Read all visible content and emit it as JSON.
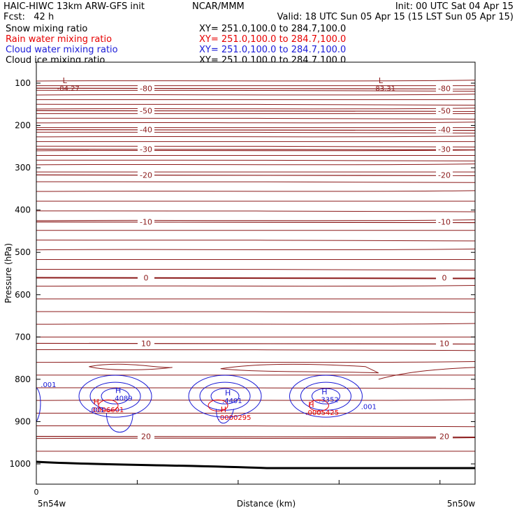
{
  "header": {
    "title": "HAIC-HIWC 13km ARW-GFS init",
    "center": "NCAR/MMM",
    "init": "Init: 00 UTC Sat 04 Apr 15",
    "fcst": "Fcst:   42 h",
    "valid": "Valid: 18 UTC Sun 05 Apr 15 (15 LST Sun 05 Apr 15)"
  },
  "fields": [
    {
      "name": "Snow mixing ratio",
      "xy": "XY= 251.0,100.0 to 284.7,100.0",
      "color": "#000000"
    },
    {
      "name": "Rain water mixing ratio",
      "xy": "XY= 251.0,100.0 to 284.7,100.0",
      "color": "#e60000"
    },
    {
      "name": "Cloud water mixing ratio",
      "xy": "XY= 251.0,100.0 to 284.7,100.0",
      "color": "#1a1ad6"
    },
    {
      "name": "Cloud ice mixing ratio",
      "xy": "XY= 251.0,100.0 to 284.7,100.0",
      "color": "#000000"
    }
  ],
  "chart_data": {
    "type": "line",
    "xlabel": "Distance (km)",
    "ylabel": "Pressure (hPa)",
    "x_tick_labels": [
      "0"
    ],
    "x_end_labels": {
      "left": "5n54w",
      "right": "5n50w"
    },
    "y_ticks": [
      100,
      200,
      300,
      400,
      500,
      600,
      700,
      800,
      900,
      1000
    ],
    "ylim": [
      1050,
      50
    ],
    "temperature_contours": [
      {
        "level": -80,
        "label": "-80",
        "p": 112
      },
      {
        "level": -50,
        "label": "-50",
        "p": 165
      },
      {
        "level": -40,
        "label": "-40",
        "p": 210
      },
      {
        "level": -30,
        "label": "-30",
        "p": 256
      },
      {
        "level": -20,
        "label": "-20",
        "p": 317
      },
      {
        "level": -10,
        "label": "-10",
        "p": 428
      },
      {
        "level": 0,
        "label": "0",
        "p": 560
      },
      {
        "level": 10,
        "label": "10",
        "p": 715
      },
      {
        "level": 20,
        "label": "20",
        "p": 935
      }
    ],
    "extrema_labels": [
      {
        "type": "L",
        "value": "-84.27",
        "color": "#8b1a1a",
        "x_frac": 0.06,
        "p": 100
      },
      {
        "type": "L",
        "value": "-83.31",
        "color": "#8b1a1a",
        "x_frac": 0.78,
        "p": 100
      },
      {
        "type": "H",
        "value": ".4089",
        "color": "#1a1ad6",
        "x_frac": 0.18,
        "p": 832
      },
      {
        "type": "H",
        "value": ".0006601",
        "color": "#e60000",
        "x_frac": 0.13,
        "p": 860
      },
      {
        "type": "H",
        "value": ".4401",
        "color": "#1a1ad6",
        "x_frac": 0.43,
        "p": 838
      },
      {
        "type": "H",
        "value": ".0000295",
        "color": "#e60000",
        "x_frac": 0.42,
        "p": 878
      },
      {
        "type": "H",
        "value": ".3352",
        "color": "#1a1ad6",
        "x_frac": 0.65,
        "p": 836
      },
      {
        "type": "H",
        "value": ".0005425",
        "color": "#e60000",
        "x_frac": 0.62,
        "p": 866
      }
    ],
    "contour_labels": [
      {
        "value": ".001",
        "color": "#1a1ad6",
        "x_frac": 0.01,
        "p": 818
      },
      {
        "value": ".001",
        "color": "#1a1ad6",
        "x_frac": 0.12,
        "p": 878
      },
      {
        "value": ".001",
        "color": "#1a1ad6",
        "x_frac": 0.74,
        "p": 870
      }
    ]
  }
}
